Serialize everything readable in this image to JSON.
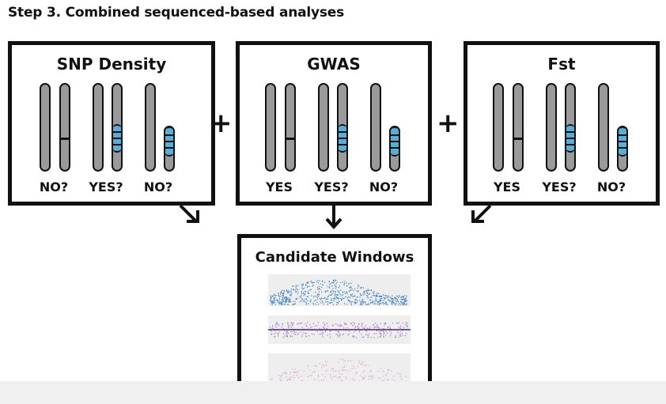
{
  "title": "Step 3. Combined sequenced-based analyses",
  "operator_plus": "+",
  "panels": [
    {
      "title": "SNP Density",
      "labels": [
        "NO?",
        "YES?",
        "NO?"
      ]
    },
    {
      "title": "GWAS",
      "labels": [
        "YES",
        "YES?",
        "NO?"
      ]
    },
    {
      "title": "Fst",
      "labels": [
        "YES",
        "YES?",
        "NO?"
      ]
    }
  ],
  "result_panel": {
    "title": "Candidate Windows"
  },
  "colors": {
    "border": "#111111",
    "chromosome": "#9a9a9a",
    "highlight": "#5aaed6",
    "plot_blue": "#3a7fc1",
    "plot_purple": "#a27bc2",
    "plot_pink": "#d79ac8"
  }
}
